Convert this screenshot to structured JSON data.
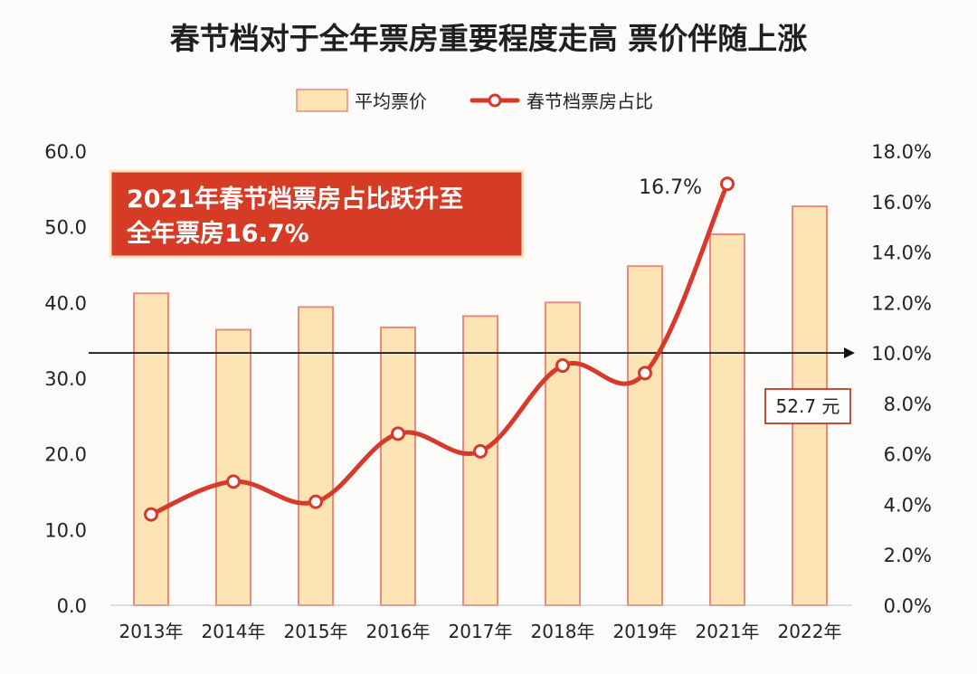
{
  "chart_data": {
    "type": "bar",
    "title": "春节档对于全年票房重要程度走高 票价伴随上涨",
    "categories": [
      "2013年",
      "2014年",
      "2015年",
      "2016年",
      "2017年",
      "2018年",
      "2019年",
      "2021年",
      "2022年"
    ],
    "series": [
      {
        "name": "平均票价",
        "type": "bar",
        "axis": "left",
        "values": [
          41.2,
          36.4,
          39.4,
          36.7,
          38.2,
          40.0,
          44.8,
          49.0,
          52.7
        ]
      },
      {
        "name": "春节档票房占比",
        "type": "line",
        "axis": "right",
        "values": [
          3.6,
          4.9,
          4.1,
          6.8,
          6.1,
          9.5,
          9.2,
          16.7,
          null
        ]
      }
    ],
    "left_axis": {
      "ylim": [
        0,
        60
      ],
      "ticks": [
        "0.0",
        "10.0",
        "20.0",
        "30.0",
        "40.0",
        "50.0",
        "60.0"
      ]
    },
    "right_axis": {
      "ylim": [
        0,
        18
      ],
      "ticks": [
        "0.0%",
        "2.0%",
        "4.0%",
        "6.0%",
        "8.0%",
        "10.0%",
        "12.0%",
        "14.0%",
        "16.0%",
        "18.0%"
      ]
    },
    "reference_line": {
      "axis": "right",
      "value": 10.0
    },
    "legend": {
      "position": "top-center",
      "items": [
        "平均票价",
        "春节档票房占比"
      ]
    },
    "annotations": {
      "callout_line1": "2021年春节档票房占比跃升至",
      "callout_line2": "全年票房16.7%",
      "peak_label": "16.7%",
      "price_label": "52.7 元"
    },
    "colors": {
      "bar_fill": "#fde4b4",
      "bar_stroke": "#e98a7e",
      "line": "#d53a2a",
      "callout_bg": "#d63b26",
      "callout_border": "#fbe3c0",
      "arrow": "#111111"
    }
  }
}
